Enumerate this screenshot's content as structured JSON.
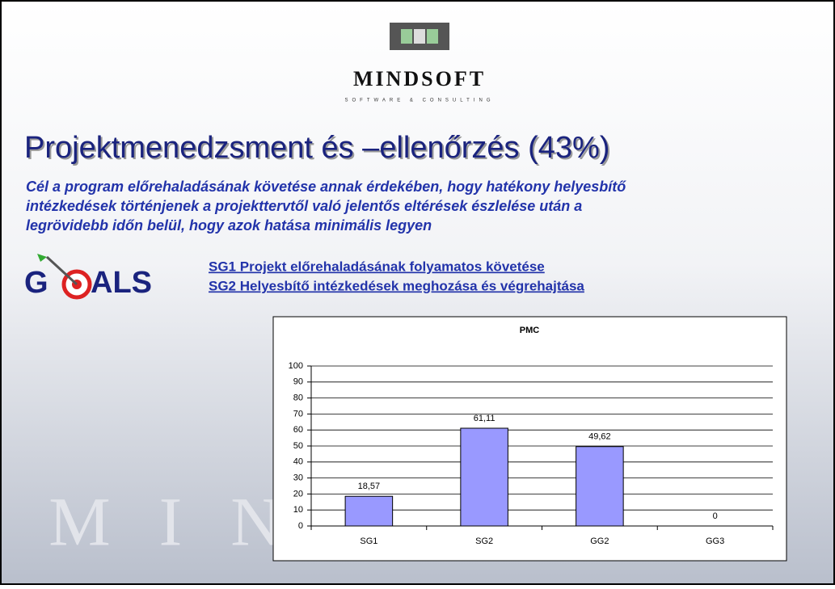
{
  "logo": {
    "name": "MINDSOFT",
    "tagline": "SOFTWARE & CONSULTING"
  },
  "title": "Projektmenedzsment és –ellenőrzés (43%)",
  "description": [
    "Cél a program előrehaladásának követése annak érdekében, hogy hatékony helyesbítő",
    "intézkedések történjenek a projekttervtől való jelentős eltérések észlelése után a",
    "legrövidebb időn belül, hogy azok hatása minimális legyen"
  ],
  "goals": {
    "left": "G",
    "right": "ALS",
    "items": [
      "SG1 Projekt előrehaladásának folyamatos követése",
      "SG2 Helyesbítő intézkedések meghozása és végrehajtása"
    ]
  },
  "chart_data": {
    "type": "bar",
    "title": "PMC",
    "categories": [
      "SG1",
      "SG2",
      "GG2",
      "GG3"
    ],
    "values": [
      18.57,
      61.11,
      49.62,
      0
    ],
    "value_labels": [
      "18,57",
      "61,11",
      "49,62",
      "0"
    ],
    "color": "#9999ff",
    "ylim": [
      0,
      100
    ],
    "yticks": [
      0,
      10,
      20,
      30,
      40,
      50,
      60,
      70,
      80,
      90,
      100
    ],
    "grid": true
  }
}
